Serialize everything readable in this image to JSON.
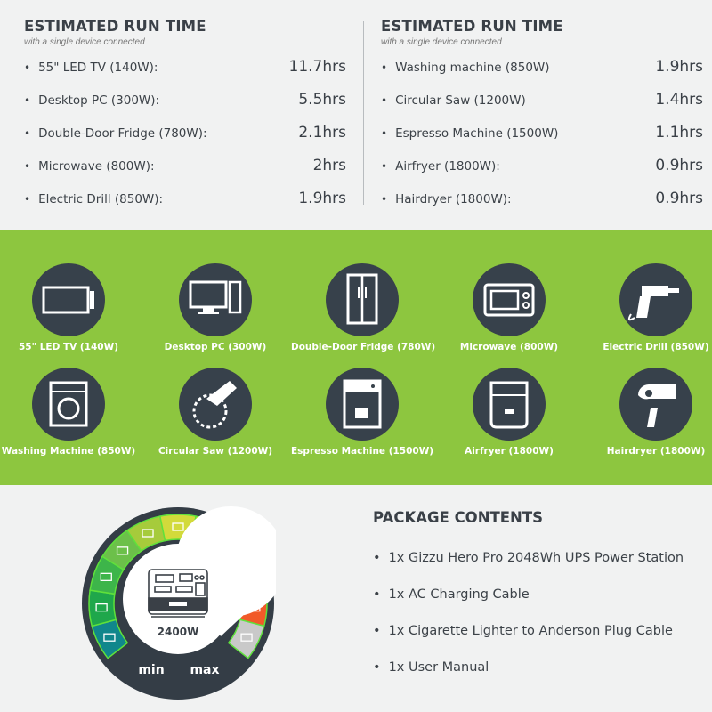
{
  "runtime_left": {
    "title": "ESTIMATED RUN TIME",
    "subtitle": "with a single device connected",
    "items": [
      {
        "label": "55\" LED TV (140W):",
        "value": "11.7hrs"
      },
      {
        "label": "Desktop PC (300W):",
        "value": "5.5hrs"
      },
      {
        "label": "Double-Door Fridge (780W):",
        "value": "2.1hrs"
      },
      {
        "label": "Microwave (800W):",
        "value": "2hrs"
      },
      {
        "label": "Electric Drill (850W):",
        "value": "1.9hrs"
      }
    ]
  },
  "runtime_right": {
    "title": "ESTIMATED RUN TIME",
    "subtitle": "with a single device connected",
    "items": [
      {
        "label": "Washing machine (850W)",
        "value": "1.9hrs"
      },
      {
        "label": "Circular Saw (1200W)",
        "value": "1.4hrs"
      },
      {
        "label": "Espresso Machine (1500W)",
        "value": "1.1hrs"
      },
      {
        "label": "Airfryer (1800W):",
        "value": "0.9hrs"
      },
      {
        "label": "Hairdryer (1800W):",
        "value": "0.9hrs"
      }
    ]
  },
  "devices": [
    {
      "label": "55\" LED TV (140W)",
      "icon": "tv-icon"
    },
    {
      "label": "Desktop PC (300W)",
      "icon": "desktop-pc-icon"
    },
    {
      "label": "Double-Door Fridge (780W)",
      "icon": "fridge-icon"
    },
    {
      "label": "Microwave (800W)",
      "icon": "microwave-icon"
    },
    {
      "label": "Electric Drill (850W)",
      "icon": "drill-icon"
    },
    {
      "label": "Washing Machine (850W)",
      "icon": "washing-machine-icon"
    },
    {
      "label": "Circular Saw (1200W)",
      "icon": "circular-saw-icon"
    },
    {
      "label": "Espresso Machine (1500W)",
      "icon": "espresso-machine-icon"
    },
    {
      "label": "Airfryer (1800W)",
      "icon": "airfryer-icon"
    },
    {
      "label": "Hairdryer (1800W)",
      "icon": "hairdryer-icon"
    }
  ],
  "gauge": {
    "power": "2400W",
    "min_label": "min",
    "max_label": "max",
    "segment_colors": [
      "#10878c",
      "#1fa74b",
      "#3db54a",
      "#6cc04a",
      "#a6cb3b",
      "#d2da3b",
      "#e4d93c",
      "#f5a524",
      "#f7842b",
      "#f15a29",
      "#c9c9c9"
    ]
  },
  "package": {
    "title": "PACKAGE CONTENTS",
    "items": [
      "1x Gizzu Hero Pro 2048Wh UPS Power Station",
      "1x AC Charging Cable",
      "1x Cigarette Lighter to Anderson Plug Cable",
      "1x User Manual"
    ]
  },
  "colors": {
    "band": "#8dc63f",
    "icon_circle": "#37414b",
    "gauge_ring": "#343d46"
  }
}
